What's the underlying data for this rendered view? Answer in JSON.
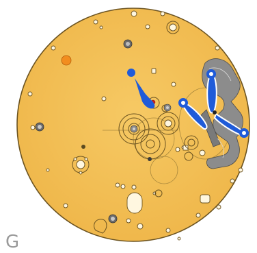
{
  "diagram": {
    "corner_letter": "G",
    "colors": {
      "plate_fill": "#f2bd52",
      "plate_stroke": "#6b5321",
      "detail_stroke": "#6f5a28",
      "highlight_blue": "#1f5bd9",
      "bridge_gray": "#8c8c8c",
      "ruby_red": "#cc1f1f",
      "orange_jewel": "#f28d1e"
    }
  }
}
